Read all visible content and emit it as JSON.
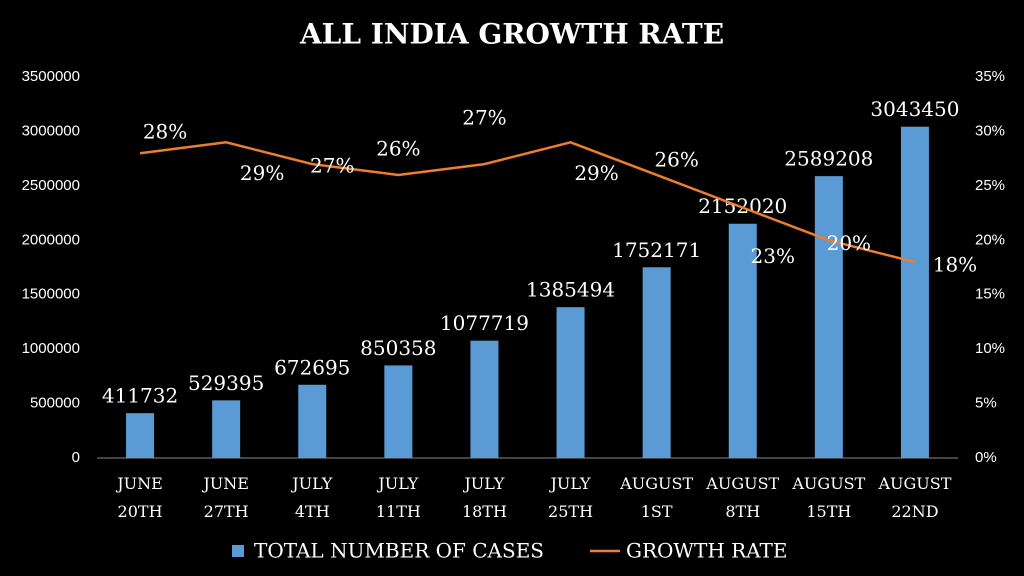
{
  "chart_data": {
    "type": "bar-line",
    "title": "ALL INDIA GROWTH RATE",
    "categories": [
      "JUNE 20TH",
      "JUNE 27TH",
      "JULY 4TH",
      "JULY 11TH",
      "JULY 18TH",
      "JULY 25TH",
      "AUGUST 1ST",
      "AUGUST 8TH",
      "AUGUST 15TH",
      "AUGUST 22ND"
    ],
    "series": [
      {
        "name": "TOTAL NUMBER OF CASES",
        "type": "bar",
        "color": "#5b9bd5",
        "values": [
          411732,
          529395,
          672695,
          850358,
          1077719,
          1385494,
          1752171,
          2152020,
          2589208,
          3043450
        ]
      },
      {
        "name": "GROWTH RATE",
        "type": "line",
        "axis": "y2",
        "color": "#ed7d31",
        "values": [
          28,
          29,
          27,
          26,
          27,
          29,
          26,
          23,
          20,
          18
        ],
        "value_labels": [
          "28%",
          "29%",
          "27%",
          "26%",
          "27%",
          "29%",
          "26%",
          "23%",
          "20%",
          "18%"
        ]
      }
    ],
    "ylim": [
      0,
      3500000
    ],
    "yticks": [
      0,
      500000,
      1000000,
      1500000,
      2000000,
      2500000,
      3000000,
      3500000
    ],
    "y2lim": [
      0,
      35
    ],
    "y2ticks": [
      {
        "value": 0,
        "label": "0%"
      },
      {
        "value": 5,
        "label": "5%"
      },
      {
        "value": 10,
        "label": "10%"
      },
      {
        "value": 15,
        "label": "15%"
      },
      {
        "value": 20,
        "label": "20%"
      },
      {
        "value": 25,
        "label": "25%"
      },
      {
        "value": 30,
        "label": "30%"
      },
      {
        "value": 35,
        "label": "35%"
      }
    ],
    "legend": "bottom",
    "grid": false
  }
}
